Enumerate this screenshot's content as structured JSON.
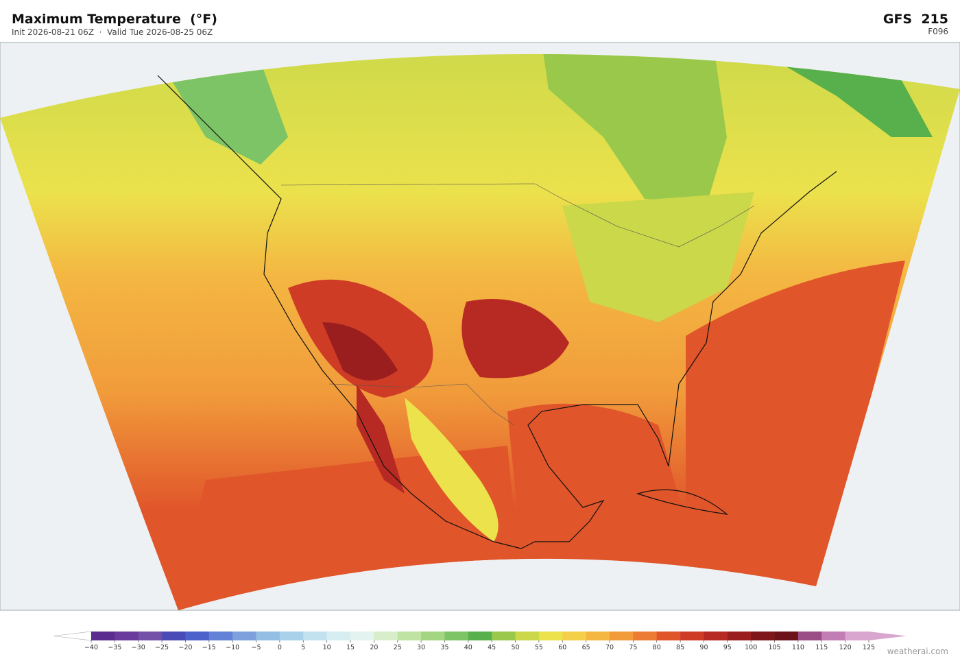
{
  "header": {
    "title": "Maximum Temperature  (°F)",
    "subtitle": "Init 2026-08-21 06Z  ·  Valid Tue 2026-08-25 06Z",
    "model": "GFS  215",
    "forecast_hour": "F096"
  },
  "colorbar": {
    "ticks": [
      {
        "value": -40,
        "label": "−40"
      },
      {
        "value": -35,
        "label": "−35"
      },
      {
        "value": -30,
        "label": "−30"
      },
      {
        "value": -25,
        "label": "−25"
      },
      {
        "value": -20,
        "label": "−20"
      },
      {
        "value": -15,
        "label": "−15"
      },
      {
        "value": -10,
        "label": "−10"
      },
      {
        "value": -5,
        "label": "−5"
      },
      0,
      5,
      10,
      15,
      20,
      25,
      30,
      35,
      40,
      45,
      50,
      55,
      60,
      65,
      70,
      75,
      80,
      85,
      90,
      95,
      100,
      105,
      110,
      115,
      120,
      125
    ],
    "colors": [
      "#5b2c8f",
      "#6a3b9c",
      "#7450a8",
      "#4b4bb8",
      "#4e62cc",
      "#6381d6",
      "#7ea1dd",
      "#94bfe4",
      "#a9d1ea",
      "#c3e2f0",
      "#d6edf2",
      "#e3f3ef",
      "#d8eecb",
      "#bfe3a3",
      "#a4d682",
      "#7cc465",
      "#58b04c",
      "#99c84b",
      "#cad84a",
      "#ebe24c",
      "#f4d04a",
      "#f4b742",
      "#f19b3b",
      "#ec7b33",
      "#e0552a",
      "#cf3c26",
      "#b72a23",
      "#9b1e1f",
      "#7f1619",
      "#6b1319",
      "#9b4d86",
      "#c27db4",
      "#d8a6cf"
    ],
    "under_color": "#ffffff",
    "over_color": "#d8a6cf"
  },
  "credit": "weatherai.com"
}
